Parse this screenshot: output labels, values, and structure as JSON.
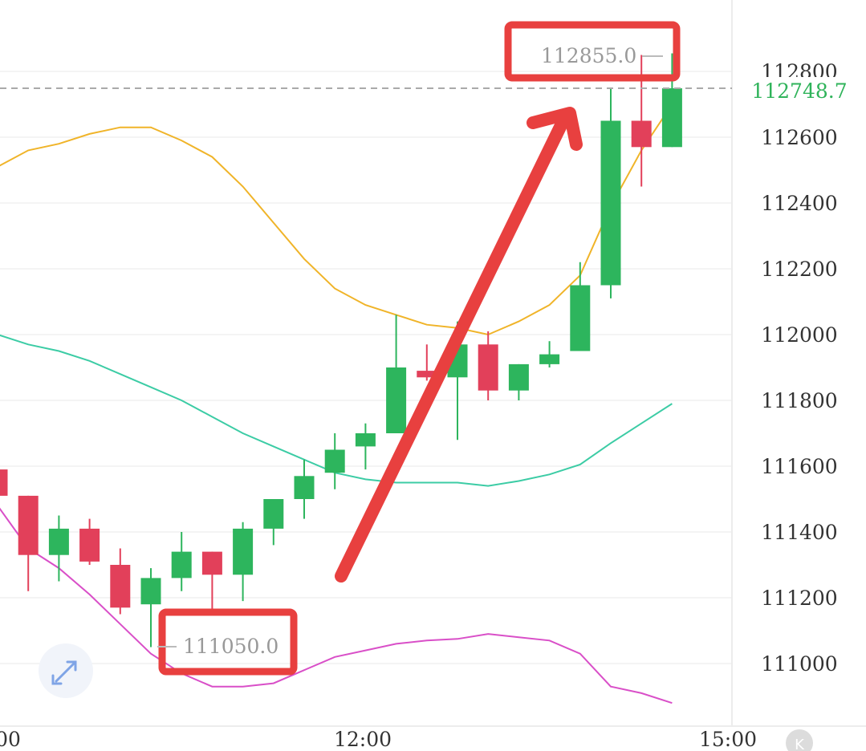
{
  "chart_data": {
    "type": "candlestick",
    "x_ticks": [
      "00",
      "12:00",
      "15:00"
    ],
    "y_ticks": [
      111000,
      111200,
      111400,
      111600,
      111800,
      112000,
      112200,
      112400,
      112600,
      112800
    ],
    "ylim": [
      110810,
      112980
    ],
    "last_price": "112748.7",
    "high_label": "112855.0",
    "low_label": "111050.0",
    "candles": [
      {
        "o": 111590,
        "h": 111600,
        "l": 111510,
        "c": 111510
      },
      {
        "o": 111510,
        "h": 111510,
        "l": 111220,
        "c": 111330
      },
      {
        "o": 111330,
        "h": 111450,
        "l": 111250,
        "c": 111410
      },
      {
        "o": 111410,
        "h": 111440,
        "l": 111300,
        "c": 111310
      },
      {
        "o": 111300,
        "h": 111350,
        "l": 111150,
        "c": 111170
      },
      {
        "o": 111180,
        "h": 111290,
        "l": 111050,
        "c": 111260
      },
      {
        "o": 111260,
        "h": 111400,
        "l": 111220,
        "c": 111340
      },
      {
        "o": 111340,
        "h": 111340,
        "l": 111150,
        "c": 111270
      },
      {
        "o": 111270,
        "h": 111430,
        "l": 111190,
        "c": 111410
      },
      {
        "o": 111410,
        "h": 111500,
        "l": 111360,
        "c": 111500
      },
      {
        "o": 111500,
        "h": 111620,
        "l": 111440,
        "c": 111570
      },
      {
        "o": 111580,
        "h": 111700,
        "l": 111530,
        "c": 111650
      },
      {
        "o": 111660,
        "h": 111730,
        "l": 111590,
        "c": 111700
      },
      {
        "o": 111700,
        "h": 112060,
        "l": 111700,
        "c": 111900
      },
      {
        "o": 111890,
        "h": 111970,
        "l": 111860,
        "c": 111870
      },
      {
        "o": 111870,
        "h": 112040,
        "l": 111680,
        "c": 111970
      },
      {
        "o": 111970,
        "h": 112010,
        "l": 111800,
        "c": 111830
      },
      {
        "o": 111830,
        "h": 111910,
        "l": 111800,
        "c": 111910
      },
      {
        "o": 111910,
        "h": 111980,
        "l": 111900,
        "c": 111940
      },
      {
        "o": 111950,
        "h": 112220,
        "l": 111950,
        "c": 112150
      },
      {
        "o": 112150,
        "h": 112750,
        "l": 112110,
        "c": 112650
      },
      {
        "o": 112650,
        "h": 112850,
        "l": 112450,
        "c": 112570
      },
      {
        "o": 112570,
        "h": 112855,
        "l": 112570,
        "c": 112748.7
      }
    ],
    "series": [
      {
        "color": "#f0b429",
        "values": [
          112510,
          112560,
          112580,
          112610,
          112630,
          112630,
          112590,
          112540,
          112450,
          112340,
          112230,
          112140,
          112090,
          112060,
          112030,
          112020,
          112000,
          112040,
          112090,
          112180,
          112390,
          112560,
          112700
        ]
      },
      {
        "color": "#3ccca5",
        "values": [
          112000,
          111970,
          111950,
          111920,
          111880,
          111840,
          111800,
          111750,
          111700,
          111660,
          111620,
          111580,
          111560,
          111550,
          111550,
          111550,
          111540,
          111555,
          111575,
          111605,
          111670,
          111730,
          111790
        ]
      },
      {
        "color": "#d94fc8",
        "values": [
          111480,
          111350,
          111290,
          111210,
          111120,
          111030,
          110970,
          110930,
          110930,
          110940,
          110980,
          111020,
          111040,
          111060,
          111070,
          111075,
          111090,
          111080,
          111070,
          111030,
          110930,
          110910,
          110880
        ]
      }
    ]
  }
}
